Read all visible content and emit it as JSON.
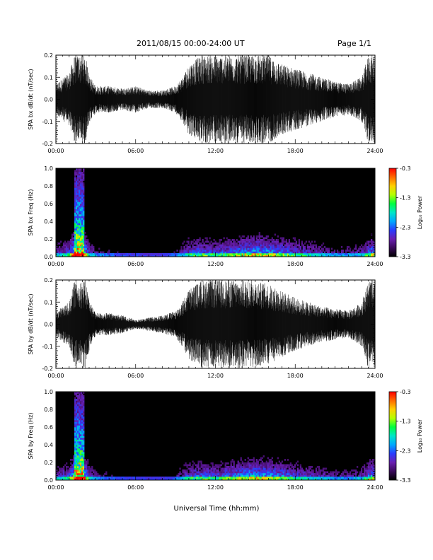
{
  "header": {
    "date_range": "2011/08/15  00:00-24:00 UT",
    "page": "Page 1/1"
  },
  "xlabel": "Universal Time (hh:mm)",
  "colorbar": {
    "label": "Log₁₀ Power",
    "ticks": [
      "-0.3",
      "-1.3",
      "-2.3",
      "-3.3"
    ],
    "range": [
      -3.3,
      -0.3
    ],
    "colors": [
      "#000000",
      "#3a0a5a",
      "#6a1fb0",
      "#2a3cff",
      "#00a8ff",
      "#00e6c8",
      "#00ff40",
      "#b4ff00",
      "#ffd000",
      "#ff6a00",
      "#ff0000"
    ]
  },
  "chart_data": [
    {
      "type": "line",
      "ylabel": "SPA bx dB/dt (nT/sec)",
      "xlim": [
        0,
        24
      ],
      "ylim": [
        -0.2,
        0.2
      ],
      "xticks": [
        "00:00",
        "06:00",
        "12:00",
        "18:00",
        "24:00"
      ],
      "yticks": [
        "0.2",
        "0.1",
        "0.0",
        "-0.1",
        "-0.2"
      ],
      "envelope": {
        "hours": [
          0,
          1,
          1.4,
          1.6,
          2.2,
          2.6,
          3,
          4,
          5,
          6,
          7,
          8,
          9,
          9.5,
          10,
          11,
          12,
          13,
          14,
          15,
          16,
          17,
          18,
          19,
          20,
          21,
          22,
          23,
          23.5,
          24
        ],
        "amplitude": [
          0.07,
          0.12,
          0.2,
          0.2,
          0.2,
          0.1,
          0.06,
          0.06,
          0.05,
          0.06,
          0.04,
          0.04,
          0.06,
          0.1,
          0.16,
          0.2,
          0.2,
          0.2,
          0.2,
          0.2,
          0.2,
          0.16,
          0.14,
          0.12,
          0.1,
          0.08,
          0.07,
          0.1,
          0.2,
          0.2
        ]
      }
    },
    {
      "type": "heatmap",
      "ylabel": "SPA bx Freq (Hz)",
      "xlim": [
        0,
        24
      ],
      "ylim": [
        0,
        1.0
      ],
      "xticks": [
        "00:00",
        "06:00",
        "12:00",
        "18:00",
        "24:00"
      ],
      "yticks": [
        "1.0",
        "0.8",
        "0.6",
        "0.4",
        "0.2",
        "0.0"
      ],
      "activity": {
        "hours": [
          0,
          1,
          1.5,
          2,
          2.5,
          3,
          4,
          5,
          6,
          7,
          8,
          9,
          10,
          11,
          12,
          13,
          14,
          15,
          16,
          17,
          18,
          19,
          20,
          21,
          22,
          23,
          23.8,
          24
        ],
        "level": [
          0.25,
          0.35,
          0.85,
          0.8,
          0.3,
          0.2,
          0.15,
          0.12,
          0.12,
          0.1,
          0.1,
          0.15,
          0.35,
          0.4,
          0.35,
          0.4,
          0.5,
          0.55,
          0.5,
          0.45,
          0.35,
          0.3,
          0.25,
          0.2,
          0.2,
          0.25,
          0.5,
          0.4
        ]
      }
    },
    {
      "type": "line",
      "ylabel": "SPA by dB/dt (nT/sec)",
      "xlim": [
        0,
        24
      ],
      "ylim": [
        -0.2,
        0.2
      ],
      "xticks": [
        "00:00",
        "06:00",
        "12:00",
        "18:00",
        "24:00"
      ],
      "yticks": [
        "0.2",
        "0.1",
        "0.0",
        "-0.1",
        "-0.2"
      ],
      "envelope": {
        "hours": [
          0,
          1,
          1.4,
          1.6,
          2.2,
          2.6,
          3,
          4,
          5,
          6,
          7,
          8,
          9,
          9.5,
          10,
          11,
          12,
          13,
          14,
          15,
          16,
          17,
          18,
          19,
          20,
          21,
          22,
          23,
          23.5,
          24
        ],
        "amplitude": [
          0.06,
          0.1,
          0.2,
          0.2,
          0.2,
          0.1,
          0.05,
          0.05,
          0.04,
          0.02,
          0.03,
          0.04,
          0.06,
          0.1,
          0.16,
          0.2,
          0.2,
          0.2,
          0.2,
          0.2,
          0.18,
          0.15,
          0.12,
          0.1,
          0.08,
          0.07,
          0.06,
          0.1,
          0.2,
          0.2
        ]
      }
    },
    {
      "type": "heatmap",
      "ylabel": "SPA by Freq (Hz)",
      "xlim": [
        0,
        24
      ],
      "ylim": [
        0,
        1.0
      ],
      "xticks": [
        "00:00",
        "06:00",
        "12:00",
        "18:00",
        "24:00"
      ],
      "yticks": [
        "1.0",
        "0.8",
        "0.6",
        "0.4",
        "0.2",
        "0.0"
      ],
      "activity": {
        "hours": [
          0,
          1,
          1.5,
          2,
          2.5,
          3,
          4,
          5,
          6,
          7,
          8,
          9,
          10,
          11,
          12,
          13,
          14,
          15,
          16,
          17,
          18,
          19,
          20,
          21,
          22,
          23,
          23.8,
          24
        ],
        "level": [
          0.25,
          0.35,
          0.85,
          0.8,
          0.3,
          0.2,
          0.15,
          0.12,
          0.12,
          0.1,
          0.1,
          0.15,
          0.35,
          0.4,
          0.35,
          0.4,
          0.5,
          0.55,
          0.5,
          0.45,
          0.35,
          0.3,
          0.25,
          0.2,
          0.2,
          0.25,
          0.5,
          0.4
        ]
      }
    }
  ]
}
